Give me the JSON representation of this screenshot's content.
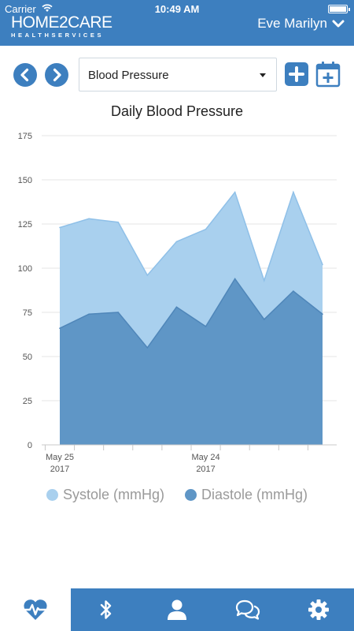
{
  "status_bar": {
    "carrier": "Carrier",
    "time": "10:49 AM"
  },
  "header": {
    "logo_main": "HOME2CARE",
    "logo_sub": "HEALTHSERVICES",
    "user_name": "Eve Marilyn"
  },
  "toolbar": {
    "selected_metric": "Blood Pressure"
  },
  "colors": {
    "primary": "#3d7fbf",
    "systole": "#a9d0ee",
    "diastole": "#5f96c6"
  },
  "chart_data": {
    "type": "area",
    "title": "Daily Blood Pressure",
    "yticks": [
      0,
      25,
      50,
      75,
      100,
      125,
      150,
      175
    ],
    "ylim": [
      0,
      175
    ],
    "x_tick_labels": [
      {
        "line1": "May 25",
        "line2": "2017",
        "index": 0
      },
      {
        "line1": "May 24",
        "line2": "2017",
        "index": 5
      }
    ],
    "series": [
      {
        "name": "Systole (mmHg)",
        "values": [
          123,
          128,
          126,
          96,
          115,
          122,
          143,
          93,
          143,
          102
        ]
      },
      {
        "name": "Diastole (mmHg)",
        "values": [
          66,
          74,
          75,
          55,
          78,
          67,
          94,
          71,
          87,
          74
        ]
      }
    ],
    "legend_position": "bottom",
    "grid": true
  },
  "tabs": [
    {
      "icon": "heartbeat-icon",
      "active": true
    },
    {
      "icon": "bluetooth-icon",
      "active": false
    },
    {
      "icon": "user-icon",
      "active": false
    },
    {
      "icon": "chat-icon",
      "active": false
    },
    {
      "icon": "gear-icon",
      "active": false
    }
  ]
}
